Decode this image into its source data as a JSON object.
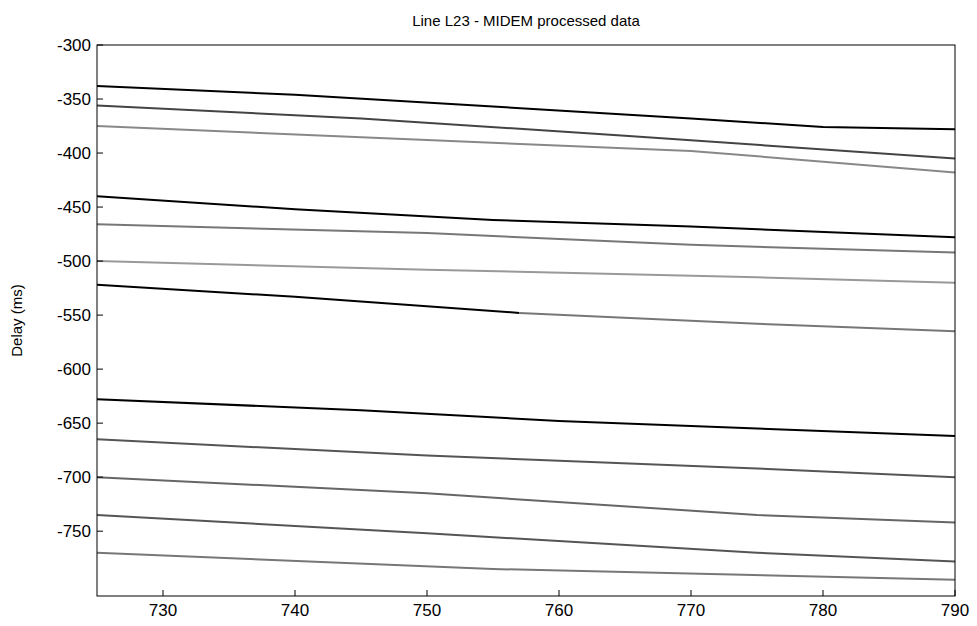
{
  "chart_data": {
    "type": "line",
    "title": "Line L23 - MIDEM processed data",
    "y_label": "Delay (ms)",
    "xlim": [
      725,
      790
    ],
    "xticks": [
      730,
      740,
      750,
      760,
      770,
      780,
      790
    ],
    "ylim": [
      -810,
      -300
    ],
    "yticks": [
      -300,
      -350,
      -400,
      -450,
      -500,
      -550,
      -600,
      -650,
      -700,
      -750
    ],
    "grid": false,
    "series": [
      {
        "color": "#000000",
        "x": [
          725,
          740,
          755,
          770,
          780,
          790
        ],
        "values": [
          -338,
          -346,
          -357,
          -368,
          -376,
          -378
        ]
      },
      {
        "color": "#444444",
        "x": [
          725,
          745,
          765,
          790
        ],
        "values": [
          -356,
          -368,
          -384,
          -405
        ]
      },
      {
        "color": "#888888",
        "x": [
          725,
          750,
          770,
          790
        ],
        "values": [
          -375,
          -388,
          -398,
          -418
        ]
      },
      {
        "color": "#000000",
        "x": [
          725,
          740,
          755,
          770,
          790
        ],
        "values": [
          -440,
          -452,
          -462,
          -468,
          -478
        ]
      },
      {
        "color": "#777777",
        "x": [
          725,
          750,
          770,
          790
        ],
        "values": [
          -466,
          -474,
          -485,
          -492
        ]
      },
      {
        "color": "#999999",
        "x": [
          725,
          750,
          775,
          790
        ],
        "values": [
          -500,
          -508,
          -515,
          -520
        ]
      },
      {
        "color": "#000000",
        "x": [
          725,
          740,
          757
        ],
        "values": [
          -522,
          -533,
          -548
        ]
      },
      {
        "color": "#777777",
        "x": [
          757,
          775,
          790
        ],
        "values": [
          -548,
          -558,
          -565
        ]
      },
      {
        "color": "#000000",
        "x": [
          725,
          745,
          760,
          775,
          790
        ],
        "values": [
          -628,
          -638,
          -648,
          -655,
          -662
        ]
      },
      {
        "color": "#555555",
        "x": [
          725,
          750,
          775,
          790
        ],
        "values": [
          -665,
          -680,
          -692,
          -700
        ]
      },
      {
        "color": "#666666",
        "x": [
          725,
          750,
          775,
          790
        ],
        "values": [
          -700,
          -715,
          -735,
          -742
        ]
      },
      {
        "color": "#555555",
        "x": [
          725,
          750,
          775,
          790
        ],
        "values": [
          -735,
          -752,
          -770,
          -778
        ]
      },
      {
        "color": "#777777",
        "x": [
          725,
          755,
          790
        ],
        "values": [
          -770,
          -785,
          -795
        ]
      }
    ]
  }
}
